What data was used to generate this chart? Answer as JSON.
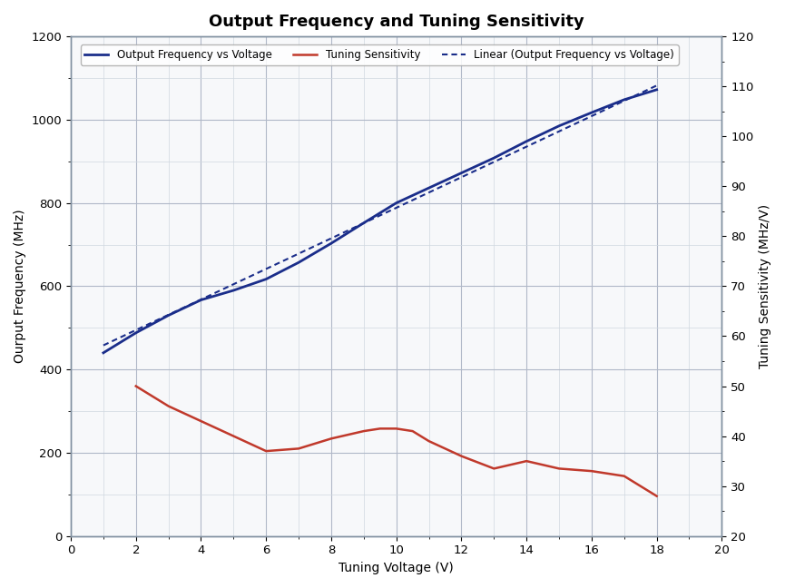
{
  "title": "Output Frequency and Tuning Sensitivity",
  "xlabel": "Tuning Voltage (V)",
  "ylabel_left": "Ourput Frequency (MHz)",
  "ylabel_right": "Tuning Sensitivity (MHz/V)",
  "xlim": [
    0,
    20
  ],
  "ylim_left": [
    0,
    1200
  ],
  "ylim_right": [
    20,
    120
  ],
  "output_freq_voltage": [
    1,
    2,
    3,
    4,
    5,
    6,
    7,
    8,
    9,
    10,
    11,
    12,
    13,
    14,
    15,
    16,
    17,
    18
  ],
  "output_freq_values": [
    440,
    488,
    530,
    567,
    590,
    617,
    657,
    703,
    752,
    800,
    836,
    872,
    908,
    948,
    985,
    1017,
    1048,
    1072
  ],
  "linear_voltage": [
    1,
    18
  ],
  "linear_values": [
    458,
    1082
  ],
  "tuning_sens_voltage": [
    2,
    3,
    4,
    5,
    6,
    7,
    8,
    9,
    9.5,
    10,
    10.5,
    11,
    12,
    13,
    14,
    15,
    16,
    17,
    18
  ],
  "tuning_sens_values": [
    50,
    46,
    43,
    40,
    37,
    37.5,
    39.5,
    41,
    41.5,
    41.5,
    41,
    39,
    36,
    33.5,
    35,
    33.5,
    33,
    32,
    28
  ],
  "color_blue": "#1a2d8a",
  "color_red": "#c0392b",
  "color_dotted": "#1a2d8a",
  "color_grid_major": "#b0b8c8",
  "color_grid_minor": "#d0d8e0",
  "background_color": "#ffffff",
  "plot_bg_color": "#f7f8fa",
  "legend_labels": [
    "Output Frequency vs Voltage",
    "Tuning Sensitivity",
    "Linear (Output Frequency vs Voltage)"
  ],
  "title_fontsize": 13,
  "axis_label_fontsize": 10,
  "tick_fontsize": 9.5,
  "legend_fontsize": 8.5,
  "xticks": [
    0,
    2,
    4,
    6,
    8,
    10,
    12,
    14,
    16,
    18,
    20
  ],
  "yticks_left": [
    0,
    200,
    400,
    600,
    800,
    1000,
    1200
  ],
  "yticks_right": [
    20,
    30,
    40,
    50,
    60,
    70,
    80,
    90,
    100,
    110,
    120
  ]
}
